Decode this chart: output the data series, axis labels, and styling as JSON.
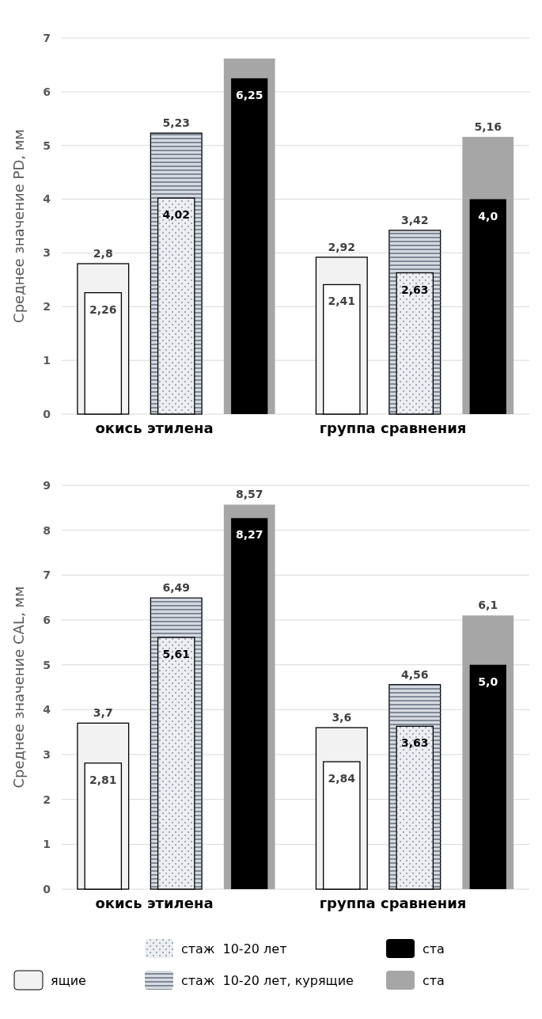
{
  "chart_data": [
    {
      "type": "bar",
      "ylabel": "Среднее значение PD, мм",
      "categories": [
        "окись этилена",
        "группа сравнения"
      ],
      "ylim": [
        0,
        7
      ],
      "yticks": [
        0,
        1,
        2,
        3,
        4,
        5,
        6,
        7
      ],
      "grid": "y",
      "legend": false,
      "series": [
        {
          "color": "#f2f2f2",
          "values": [
            2.8,
            2.92
          ],
          "value_labels": [
            "2,8",
            "2,92"
          ]
        },
        {
          "color": "#ffffff",
          "values": [
            2.26,
            2.41
          ],
          "value_labels": [
            "2,26",
            "2,41"
          ]
        },
        {
          "color": "#d6dae0",
          "values": [
            5.23,
            3.42
          ],
          "value_labels": [
            "5,23",
            "3,42"
          ]
        },
        {
          "color": "#eceef2",
          "values": [
            4.02,
            2.63
          ],
          "value_labels": [
            "4,02",
            "2,63"
          ]
        },
        {
          "color": "#a6a6a6",
          "values": [
            6.62,
            5.16
          ],
          "value_labels": [
            null,
            "5,16"
          ]
        },
        {
          "color": "#000000",
          "values": [
            6.25,
            4.0
          ],
          "value_labels": [
            "6,25",
            "4,0"
          ]
        }
      ]
    },
    {
      "type": "bar",
      "ylabel": "Среднее значение CAL, мм",
      "categories": [
        "окись этилена",
        "группа сравнения"
      ],
      "ylim": [
        0,
        9
      ],
      "yticks": [
        0,
        1,
        2,
        3,
        4,
        5,
        6,
        7,
        8,
        9
      ],
      "grid": "y",
      "legend": "bottom",
      "series": [
        {
          "name": "ящие",
          "color": "#f2f2f2",
          "values": [
            3.7,
            3.6
          ],
          "value_labels": [
            "3,7",
            "3,6"
          ]
        },
        {
          "color": "#ffffff",
          "values": [
            2.81,
            2.84
          ],
          "value_labels": [
            "2,81",
            "2,84"
          ]
        },
        {
          "name": "стаж  10-20 лет, курящие",
          "color": "#d6dae0",
          "values": [
            6.49,
            4.56
          ],
          "value_labels": [
            "6,49",
            "4,56"
          ]
        },
        {
          "name": "стаж  10-20 лет",
          "color": "#eceef2",
          "values": [
            5.61,
            3.63
          ],
          "value_labels": [
            "5,61",
            "3,63"
          ]
        },
        {
          "name": "ста",
          "color": "#a6a6a6",
          "values": [
            8.57,
            6.1
          ],
          "value_labels": [
            "8,57",
            "6,1"
          ]
        },
        {
          "name": "ста",
          "color": "#000000",
          "values": [
            8.27,
            5.0
          ],
          "value_labels": [
            "8,27",
            "5,0"
          ]
        }
      ]
    }
  ]
}
